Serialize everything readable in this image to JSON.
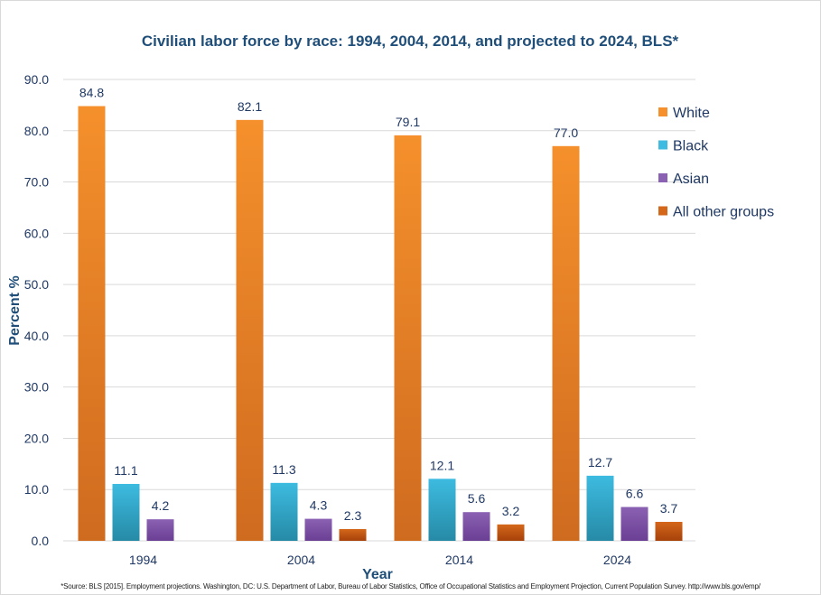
{
  "chart_data": {
    "type": "bar",
    "title": "Civilian labor force by race: 1994,  2004, 2014, and projected to 2024, BLS*",
    "xlabel": "Year",
    "ylabel": "Percent %",
    "ylim": [
      0,
      90
    ],
    "yticks": [
      "0.0",
      "10.0",
      "20.0",
      "30.0",
      "40.0",
      "50.0",
      "60.0",
      "70.0",
      "80.0",
      "90.0"
    ],
    "grid": true,
    "legend_position": "right",
    "categories": [
      "1994",
      "2004",
      "2014",
      "2024"
    ],
    "series": [
      {
        "name": "White",
        "values": [
          84.8,
          82.1,
          79.1,
          77.0
        ],
        "labels": [
          "84.8",
          "82.1",
          "79.1",
          "77.0"
        ],
        "color": "#f5902c",
        "color_dark": "#cf6b1f"
      },
      {
        "name": "Black",
        "values": [
          11.1,
          11.3,
          12.1,
          12.7
        ],
        "labels": [
          "11.1",
          "11.3",
          "12.1",
          "12.7"
        ],
        "color": "#3dbbe0",
        "color_dark": "#268aa6"
      },
      {
        "name": "Asian",
        "values": [
          4.2,
          4.3,
          5.6,
          6.6
        ],
        "labels": [
          "4.2",
          "4.3",
          "5.6",
          "6.6"
        ],
        "color": "#8b61b3",
        "color_dark": "#6a3f94"
      },
      {
        "name": "All other groups",
        "values": [
          null,
          2.3,
          3.2,
          3.7
        ],
        "labels": [
          null,
          "2.3",
          "3.2",
          "3.7"
        ],
        "color": "#d4671a",
        "color_dark": "#a6410a"
      }
    ]
  },
  "footnote": "*Source: BLS [2015]. Employment projections.  Washington,  DC: U.S. Department of Labor, Bureau of Labor Statistics, Office of Occupational Statistics and Employment  Projection, Current Population Survey.  http://www.bls.gov/emp/",
  "colors": {
    "text": "#1f3864",
    "title": "#1f4e79",
    "grid": "#d9d9d9"
  }
}
